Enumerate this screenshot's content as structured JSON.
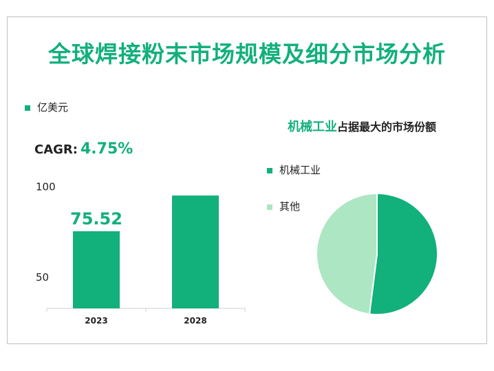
{
  "title": "全球焊接粉末市场规模及细分市场分析",
  "colors": {
    "primary": "#12b07a",
    "secondary": "#ade6c3",
    "text": "#222222"
  },
  "bar_legend": {
    "label": "亿美元"
  },
  "cagr": {
    "label": "CAGR:",
    "value": "4.75%"
  },
  "pie_title": {
    "highlight": "机械工业",
    "rest": "占据最大的市场份额"
  },
  "chart_data": [
    {
      "type": "bar",
      "categories": [
        "2023",
        "2028"
      ],
      "values": [
        75.52,
        95.2
      ],
      "data_labels": [
        "75.52",
        ""
      ],
      "yticks": [
        50,
        100
      ],
      "ylim": [
        33,
        118
      ],
      "legend": [
        "亿美元"
      ],
      "grid": false
    },
    {
      "type": "pie",
      "labels": [
        "机械工业",
        "其他"
      ],
      "values": [
        52,
        48
      ],
      "legend_placement": "left"
    }
  ]
}
